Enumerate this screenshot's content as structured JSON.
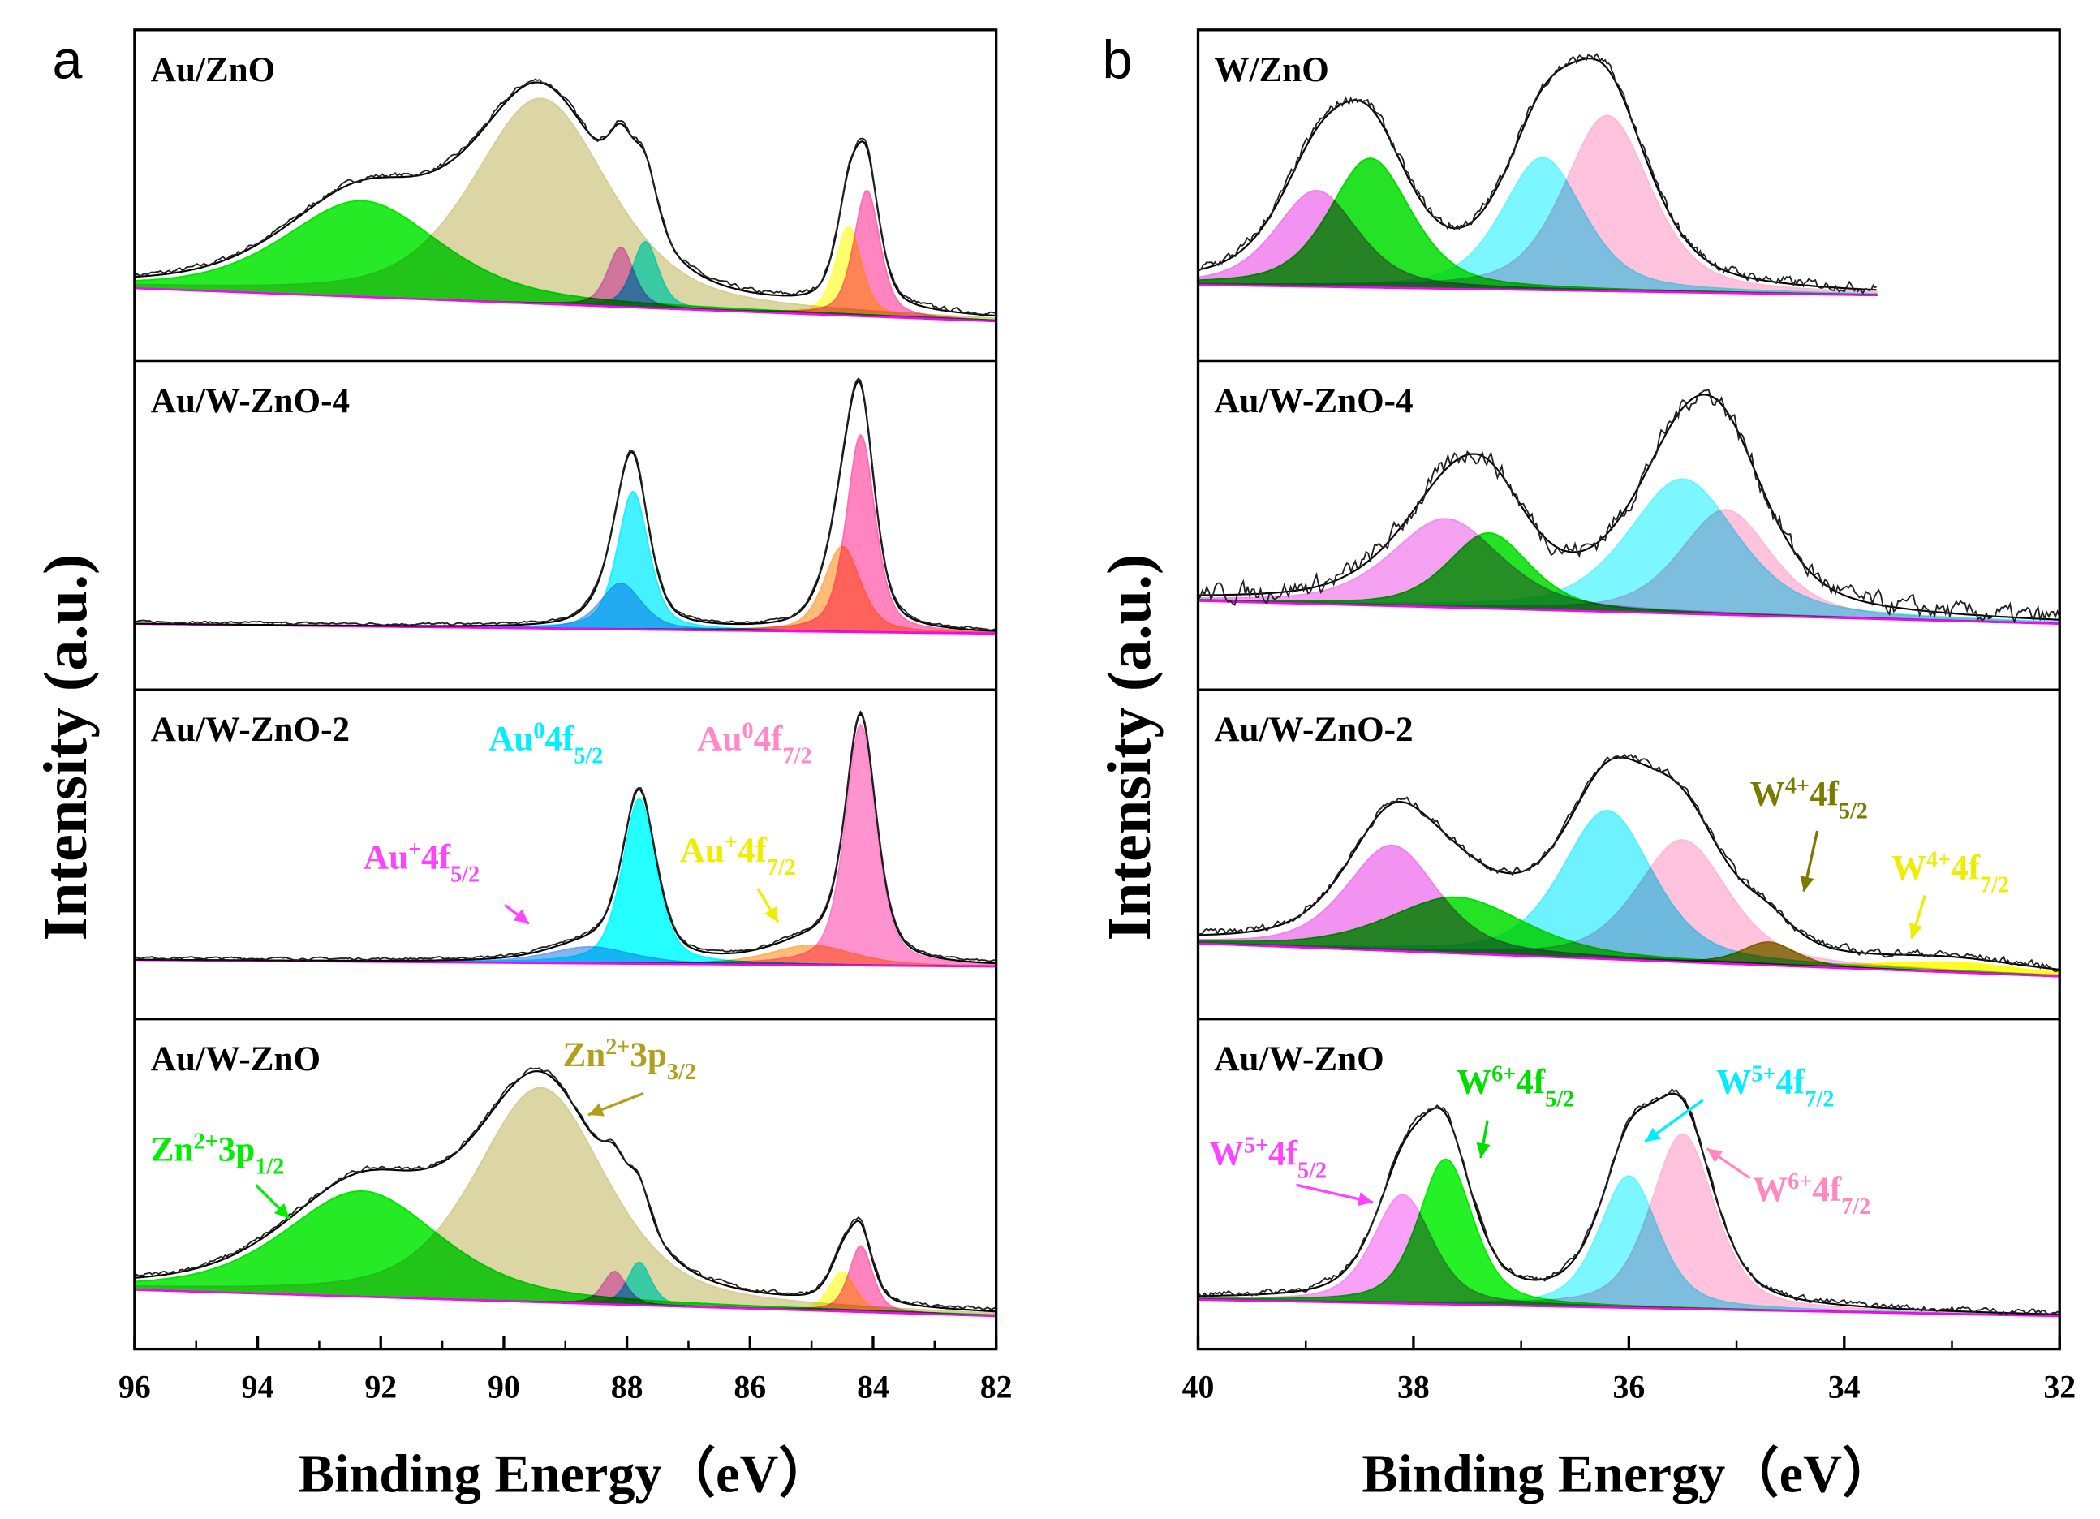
{
  "chart_data": [
    {
      "type": "area",
      "panel_letter": "a",
      "ylabel": "Intensity (a.u.)",
      "xlabel": "Binding Energy（eV）",
      "xlim": [
        96,
        82
      ],
      "xticks": [
        96,
        94,
        92,
        90,
        88,
        86,
        84,
        82
      ],
      "subplots": [
        {
          "label": "Au/ZnO",
          "baseline": [
            0.22,
            0.12
          ],
          "range": [
            96,
            82
          ],
          "noise": 0.006,
          "components": [
            {
              "name": "Zn2+ 3p1/2",
              "center": 92.3,
              "amplitude": 0.29,
              "fwhm": 3.0,
              "color": "#00e600"
            },
            {
              "name": "Zn2+ 3p3/2",
              "center": 89.4,
              "amplitude": 0.62,
              "fwhm": 2.6,
              "color": "#d6cf94"
            },
            {
              "name": "Au+ 4f5/2",
              "center": 88.1,
              "amplitude": 0.18,
              "fwhm": 0.5,
              "color": "#ee77ee"
            },
            {
              "name": "Au0 4f5/2",
              "center": 87.7,
              "amplitude": 0.2,
              "fwhm": 0.5,
              "color": "#22eeff"
            },
            {
              "name": "Au+ 4f7/2",
              "center": 84.4,
              "amplitude": 0.27,
              "fwhm": 0.5,
              "color": "#ffff55"
            },
            {
              "name": "Au0 4f7/2",
              "center": 84.1,
              "amplitude": 0.38,
              "fwhm": 0.5,
              "color": "#ff6fb5"
            }
          ]
        },
        {
          "label": "Au/W-ZnO-4",
          "baseline": [
            0.2,
            0.17
          ],
          "range": [
            96,
            82
          ],
          "noise": 0.003,
          "components": [
            {
              "name": "Au+ 4f5/2",
              "center": 88.1,
              "amplitude": 0.14,
              "fwhm": 0.8,
              "color": "#6fa8f0"
            },
            {
              "name": "Au0 4f5/2",
              "center": 87.9,
              "amplitude": 0.42,
              "fwhm": 0.6,
              "color": "#22eeff"
            },
            {
              "name": "Au+ 4f7/2",
              "center": 84.5,
              "amplitude": 0.26,
              "fwhm": 0.7,
              "color": "#ffb060"
            },
            {
              "name": "Au0 4f7/2",
              "center": 84.2,
              "amplitude": 0.6,
              "fwhm": 0.55,
              "color": "#ff6fb5"
            }
          ]
        },
        {
          "label": "Au/W-ZnO-2",
          "baseline": [
            0.18,
            0.16
          ],
          "range": [
            96,
            82
          ],
          "noise": 0.003,
          "components": [
            {
              "name": "Au+ 4f5/2",
              "center": 88.6,
              "amplitude": 0.05,
              "fwhm": 1.6,
              "color": "#6fa8f0"
            },
            {
              "name": "Au0 4f5/2",
              "center": 87.8,
              "amplitude": 0.5,
              "fwhm": 0.65,
              "color": "#00ffff"
            },
            {
              "name": "Au+ 4f7/2",
              "center": 85.0,
              "amplitude": 0.06,
              "fwhm": 1.6,
              "color": "#ffb060"
            },
            {
              "name": "Au0 4f7/2",
              "center": 84.2,
              "amplitude": 0.73,
              "fwhm": 0.6,
              "color": "#ff80c8"
            }
          ]
        },
        {
          "label": "Au/W-ZnO",
          "baseline": [
            0.18,
            0.1
          ],
          "range": [
            96,
            82
          ],
          "noise": 0.005,
          "components": [
            {
              "name": "Zn2+ 3p1/2",
              "center": 92.3,
              "amplitude": 0.32,
              "fwhm": 3.0,
              "color": "#00e600"
            },
            {
              "name": "Zn2+ 3p3/2",
              "center": 89.4,
              "amplitude": 0.65,
              "fwhm": 2.5,
              "color": "#d6cf94"
            },
            {
              "name": "Au+ 4f5/2",
              "center": 88.2,
              "amplitude": 0.1,
              "fwhm": 0.45,
              "color": "#ee77ee"
            },
            {
              "name": "Au0 4f5/2",
              "center": 87.8,
              "amplitude": 0.13,
              "fwhm": 0.45,
              "color": "#22eeff"
            },
            {
              "name": "Au+ 4f7/2",
              "center": 84.5,
              "amplitude": 0.12,
              "fwhm": 0.5,
              "color": "#ffff55"
            },
            {
              "name": "Au0 4f7/2",
              "center": 84.2,
              "amplitude": 0.2,
              "fwhm": 0.45,
              "color": "#ff6fb5"
            }
          ]
        }
      ],
      "annotations": [
        {
          "base": "Au",
          "sup": "0",
          "mid": "4f",
          "sub": "5/2",
          "color": "#00f0ff"
        },
        {
          "base": "Au",
          "sup": "0",
          "mid": "4f",
          "sub": "7/2",
          "color": "#ff88c8"
        },
        {
          "base": "Au",
          "sup": "+",
          "mid": "4f",
          "sub": "5/2",
          "color": "#ff44ff"
        },
        {
          "base": "Au",
          "sup": "+",
          "mid": "4f",
          "sub": "7/2",
          "color": "#eeee00"
        },
        {
          "base": "Zn",
          "sup": "2+",
          "mid": "3p",
          "sub": "3/2",
          "color": "#b0a020"
        },
        {
          "base": "Zn",
          "sup": "2+",
          "mid": "3p",
          "sub": "1/2",
          "color": "#00ee00"
        }
      ]
    },
    {
      "type": "area",
      "panel_letter": "b",
      "ylabel": "Intensity (a.u.)",
      "xlabel": "Binding Energy（eV）",
      "xlim": [
        40,
        32
      ],
      "xticks": [
        40,
        38,
        36,
        34,
        32
      ],
      "subplots": [
        {
          "label": "W/ZnO",
          "baseline": [
            0.23,
            0.19
          ],
          "range": [
            40,
            33.7
          ],
          "noise": 0.012,
          "components": [
            {
              "name": "W5+ 4f5/2",
              "center": 38.9,
              "amplitude": 0.29,
              "fwhm": 0.9,
              "color": "#f080f0"
            },
            {
              "name": "W6+ 4f5/2",
              "center": 38.4,
              "amplitude": 0.39,
              "fwhm": 0.9,
              "color": "#00dd00"
            },
            {
              "name": "W5+ 4f7/2",
              "center": 36.8,
              "amplitude": 0.4,
              "fwhm": 0.9,
              "color": "#66f6ff"
            },
            {
              "name": "W6+ 4f7/2",
              "center": 36.2,
              "amplitude": 0.53,
              "fwhm": 0.95,
              "color": "#ffb8d8"
            }
          ]
        },
        {
          "label": "Au/W-ZnO-4",
          "baseline": [
            0.27,
            0.2
          ],
          "range": [
            40,
            32
          ],
          "noise": 0.025,
          "components": [
            {
              "name": "W5+ 4f5/2",
              "center": 37.7,
              "amplitude": 0.27,
              "fwhm": 1.2,
              "color": "#f290f0"
            },
            {
              "name": "W6+ 4f5/2",
              "center": 37.3,
              "amplitude": 0.23,
              "fwhm": 0.9,
              "color": "#00dd00"
            },
            {
              "name": "W5+ 4f7/2",
              "center": 35.5,
              "amplitude": 0.41,
              "fwhm": 1.2,
              "color": "#66f6ff"
            },
            {
              "name": "W6+ 4f7/2",
              "center": 35.1,
              "amplitude": 0.32,
              "fwhm": 1.0,
              "color": "#ffb8d8"
            }
          ]
        },
        {
          "label": "Au/W-ZnO-2",
          "baseline": [
            0.23,
            0.13
          ],
          "range": [
            40,
            32
          ],
          "noise": 0.01,
          "components": [
            {
              "name": "W5+ 4f5/2",
              "center": 38.2,
              "amplitude": 0.32,
              "fwhm": 1.0,
              "color": "#f080f0"
            },
            {
              "name": "W6+ 4f5/2",
              "center": 37.6,
              "amplitude": 0.17,
              "fwhm": 1.5,
              "color": "#00dd00"
            },
            {
              "name": "W5+ 4f7/2",
              "center": 36.2,
              "amplitude": 0.45,
              "fwhm": 1.0,
              "color": "#55f0ff"
            },
            {
              "name": "W6+ 4f7/2",
              "center": 35.5,
              "amplitude": 0.37,
              "fwhm": 1.0,
              "color": "#ffb8d8"
            },
            {
              "name": "W4+ 4f5/2",
              "center": 34.7,
              "amplitude": 0.07,
              "fwhm": 0.6,
              "color": "#808000"
            },
            {
              "name": "W4+ 4f7/2",
              "center": 33.0,
              "amplitude": 0.03,
              "fwhm": 1.6,
              "color": "#ffff00"
            }
          ]
        },
        {
          "label": "Au/W-ZnO",
          "baseline": [
            0.15,
            0.1
          ],
          "range": [
            40,
            32
          ],
          "noise": 0.008,
          "components": [
            {
              "name": "W5+ 4f5/2",
              "center": 38.1,
              "amplitude": 0.33,
              "fwhm": 0.65,
              "color": "#f890f8"
            },
            {
              "name": "W6+ 4f5/2",
              "center": 37.7,
              "amplitude": 0.44,
              "fwhm": 0.6,
              "color": "#00ee00"
            },
            {
              "name": "W5+ 4f7/2",
              "center": 36.0,
              "amplitude": 0.4,
              "fwhm": 0.65,
              "color": "#66f6ff"
            },
            {
              "name": "W6+ 4f7/2",
              "center": 35.5,
              "amplitude": 0.53,
              "fwhm": 0.7,
              "color": "#ffb8d8"
            }
          ]
        }
      ],
      "annotations": [
        {
          "base": "W",
          "sup": "4+",
          "mid": "4f",
          "sub": "5/2",
          "color": "#7a7a00"
        },
        {
          "base": "W",
          "sup": "4+",
          "mid": "4f",
          "sub": "7/2",
          "color": "#eeee00"
        },
        {
          "base": "W",
          "sup": "6+",
          "mid": "4f",
          "sub": "5/2",
          "color": "#00dd00"
        },
        {
          "base": "W",
          "sup": "5+",
          "mid": "4f",
          "sub": "7/2",
          "color": "#00eeff"
        },
        {
          "base": "W",
          "sup": "5+",
          "mid": "4f",
          "sub": "5/2",
          "color": "#ff44ff"
        },
        {
          "base": "W",
          "sup": "6+",
          "mid": "4f",
          "sub": "7/2",
          "color": "#ff88c0"
        }
      ]
    }
  ]
}
